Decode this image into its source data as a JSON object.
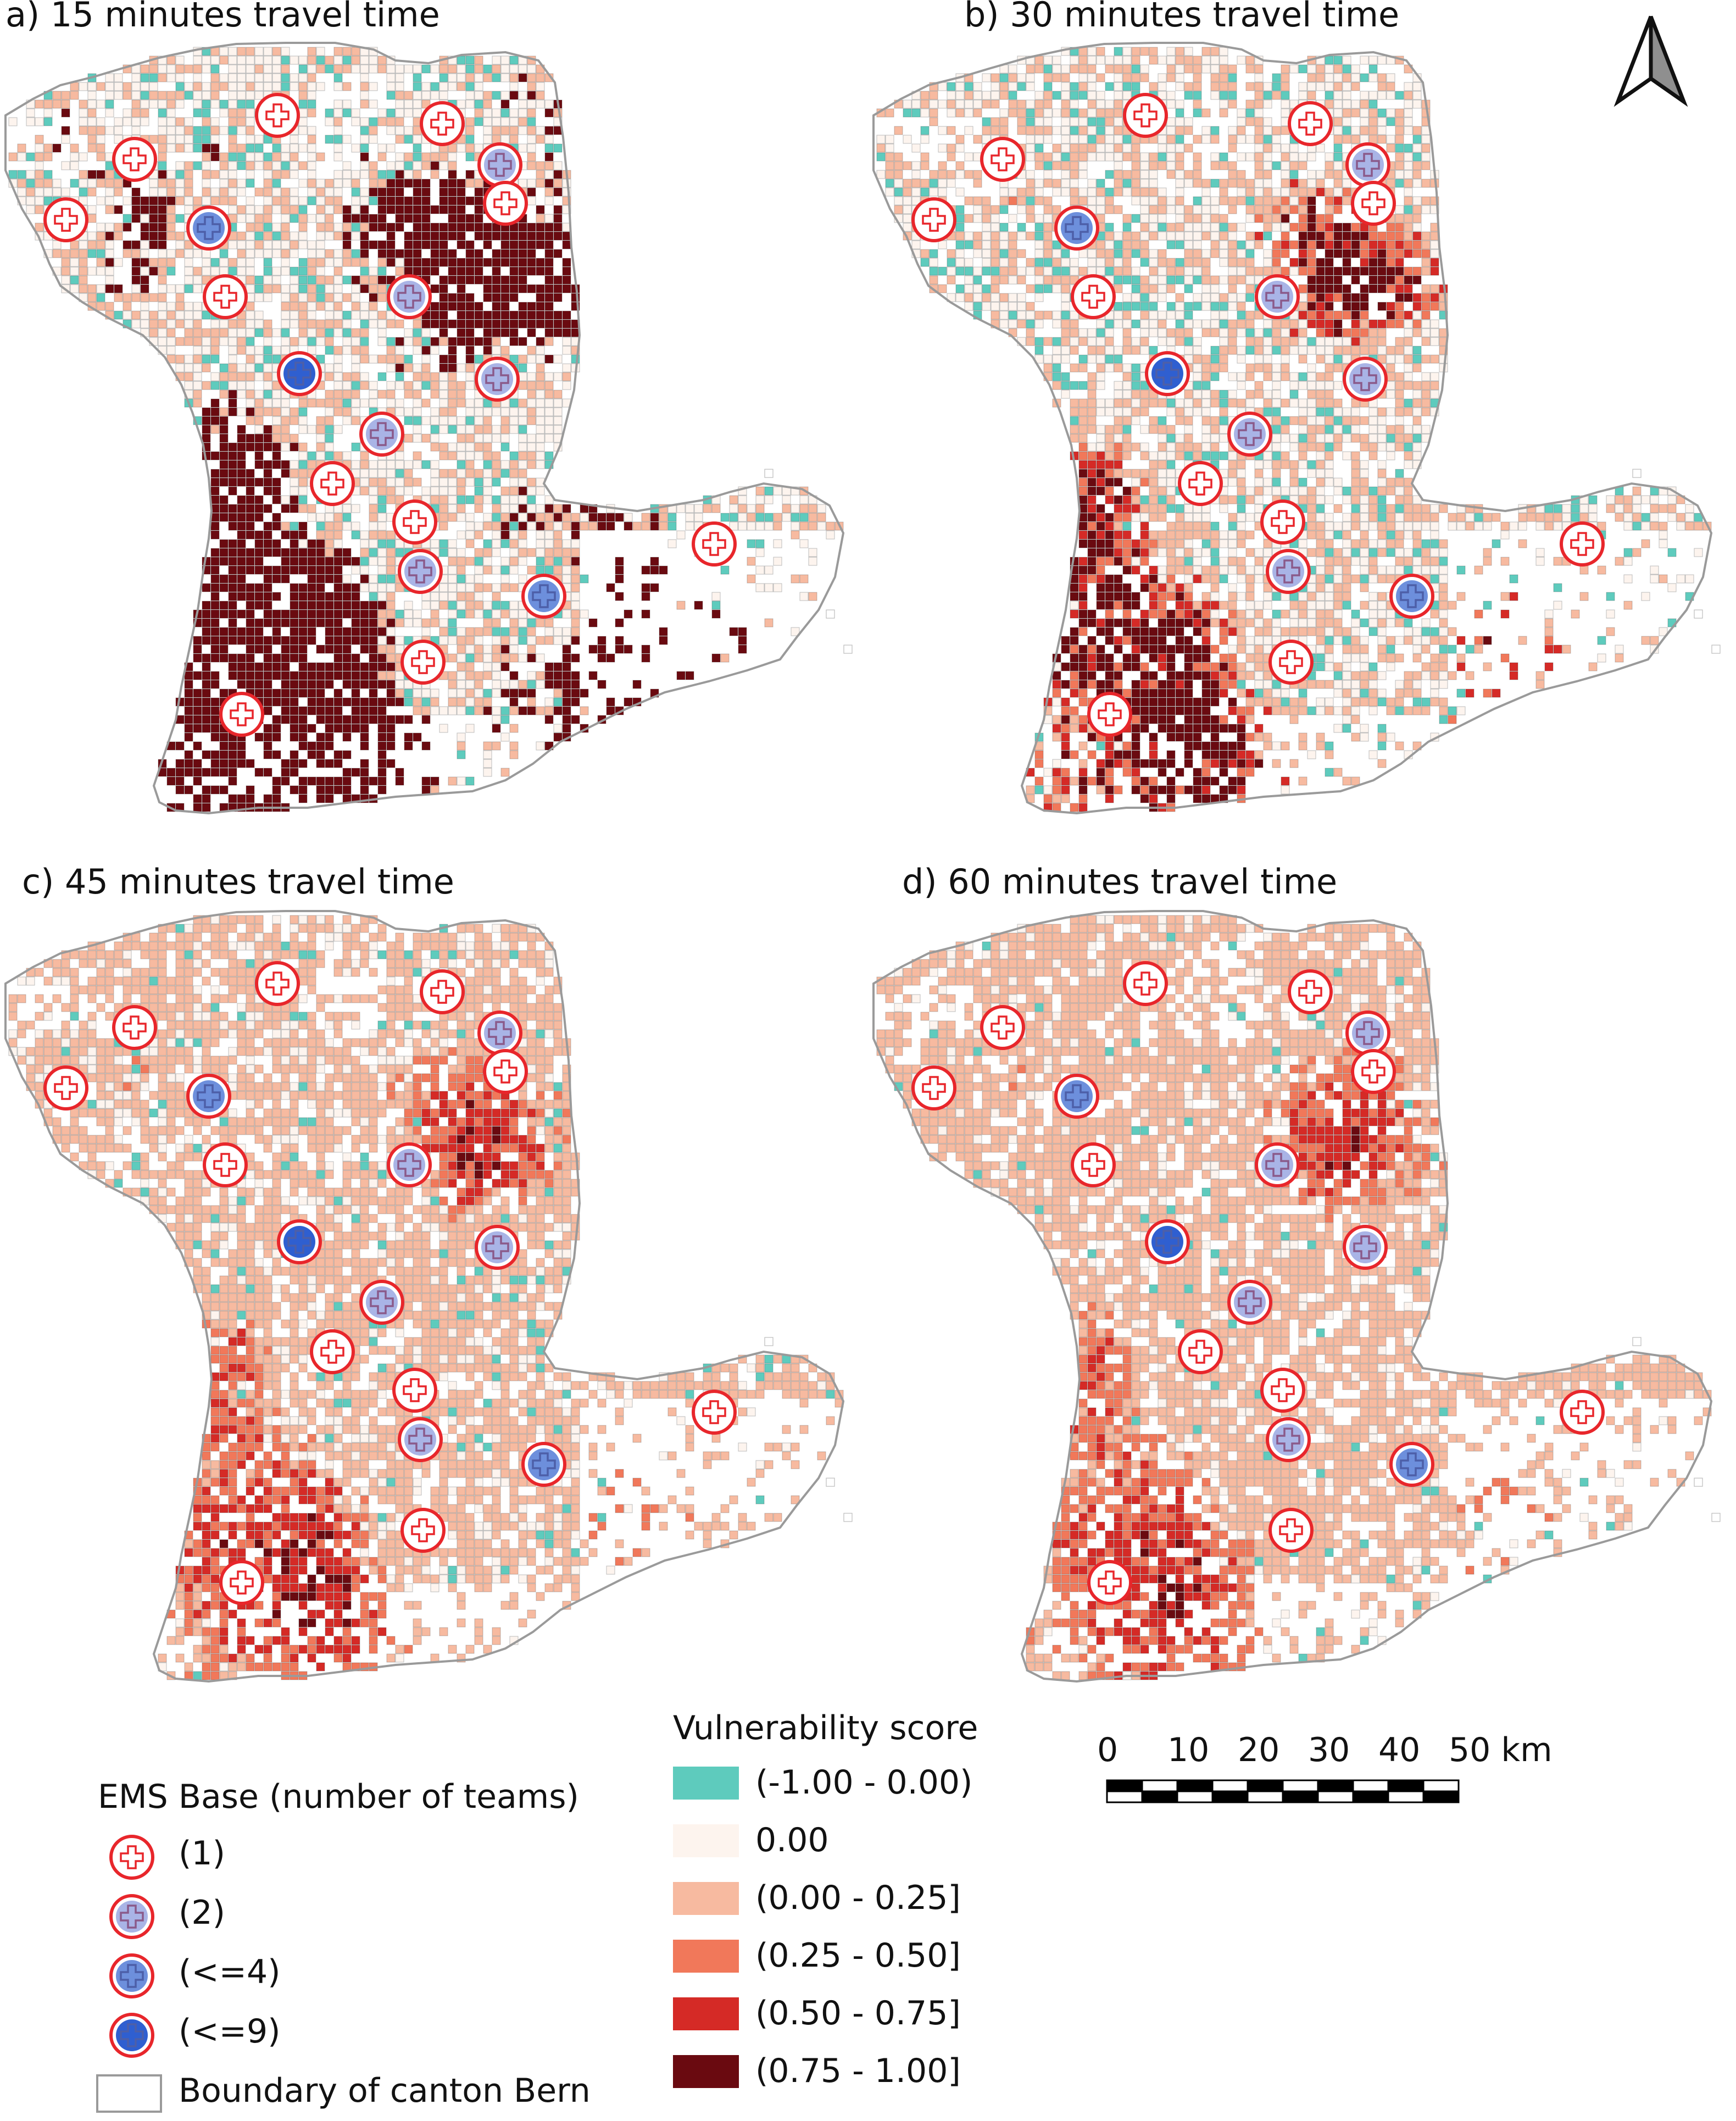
{
  "panels": [
    {
      "title": "a) 15 minutes travel time",
      "travel_time_min": 15
    },
    {
      "title": "b) 30 minutes travel time",
      "travel_time_min": 30
    },
    {
      "title": "c) 45 minutes travel time",
      "travel_time_min": 45
    },
    {
      "title": "d) 60 minutes travel time",
      "travel_time_min": 60
    }
  ],
  "ems_legend": {
    "title": "EMS Base (number of teams)",
    "items": [
      {
        "label": "(1)",
        "fill": "#ffffff"
      },
      {
        "label": "(2)",
        "fill": "#a9b4e6"
      },
      {
        "label": "(<=4)",
        "fill": "#6d8fdc"
      },
      {
        "label": "(<=9)",
        "fill": "#2f5fd0"
      }
    ],
    "boundary_label": "Boundary of canton Bern"
  },
  "vulnerability_legend": {
    "title": "Vulnerability score",
    "classes": [
      {
        "label": "(-1.00 - 0.00)",
        "color": "#5ecbbd"
      },
      {
        "label": "0.00",
        "color": "#fdf4ee"
      },
      {
        "label": "(0.00 - 0.25]",
        "color": "#f7baa0"
      },
      {
        "label": "(0.25 - 0.50]",
        "color": "#f1785a"
      },
      {
        "label": "(0.50 - 0.75]",
        "color": "#d52a26"
      },
      {
        "label": "(0.75 - 1.00]",
        "color": "#6a0a10"
      }
    ]
  },
  "scale_bar": {
    "ticks": [
      "0",
      "10",
      "20",
      "30",
      "40",
      "50 km"
    ]
  },
  "colors": {
    "ems_ring": "#e8262b",
    "boundary": "#9a9a9a",
    "grid_line": "#bcbcbc"
  }
}
